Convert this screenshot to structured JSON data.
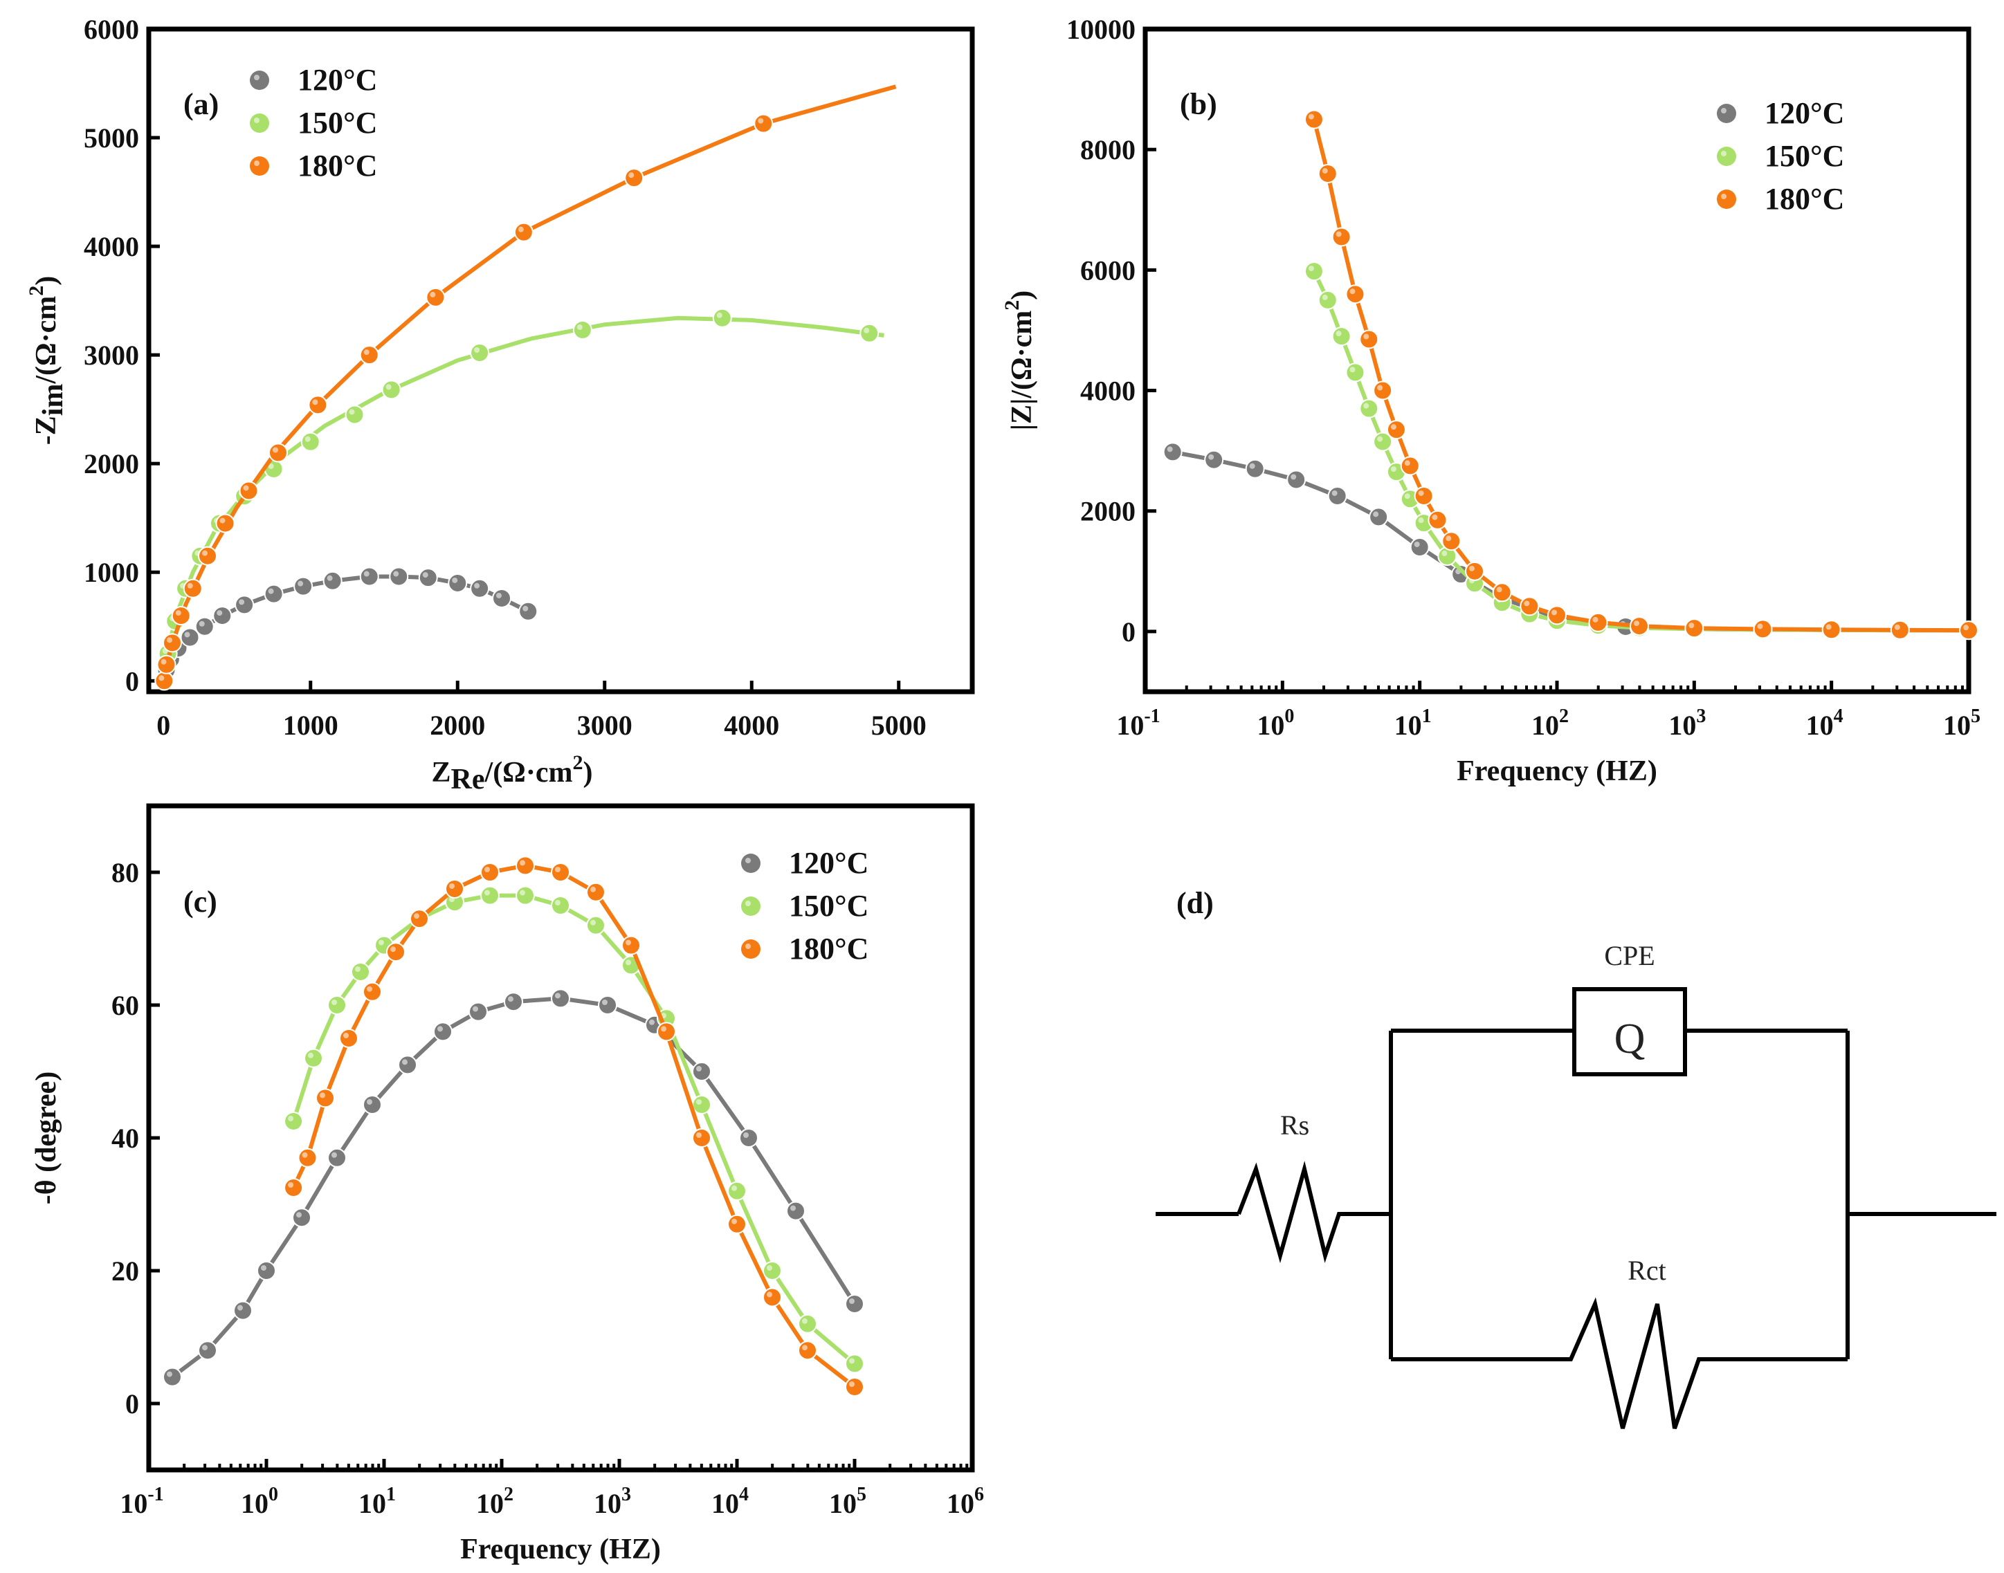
{
  "colors": {
    "c120": "#7a7a7a",
    "c150": "#a8e06a",
    "c180": "#f57a12",
    "axis": "#000000"
  },
  "chart_data": [
    {
      "panel": "a",
      "type": "scatter",
      "label": "(a)",
      "xlabel_main": "Z",
      "xlabel_sub": "Re",
      "xlabel_unit": "/(Ω·cm",
      "xlabel_sup": "2",
      "xlabel_close": ")",
      "ylabel_main": "-Z",
      "ylabel_sub": "im",
      "ylabel_unit": "/(Ω·cm",
      "ylabel_sup": "2",
      "ylabel_close": ")",
      "xlim": [
        -100,
        5500
      ],
      "ylim": [
        -100,
        6000
      ],
      "xticks": [
        0,
        1000,
        2000,
        3000,
        4000,
        5000
      ],
      "xtick_labels": [
        "0",
        "1000",
        "2000",
        "3000",
        "4000",
        "5000"
      ],
      "yticks": [
        0,
        1000,
        2000,
        3000,
        4000,
        5000,
        6000
      ],
      "ytick_labels": [
        "0",
        "1000",
        "2000",
        "3000",
        "4000",
        "5000",
        "6000"
      ],
      "series": [
        {
          "name": "120°C",
          "color_key": "c120",
          "x": [
            5,
            20,
            50,
            100,
            180,
            280,
            400,
            550,
            750,
            950,
            1150,
            1400,
            1600,
            1800,
            2000,
            2150,
            2300,
            2480
          ],
          "y": [
            0,
            100,
            200,
            300,
            400,
            500,
            600,
            700,
            800,
            870,
            920,
            960,
            960,
            950,
            900,
            850,
            760,
            640
          ]
        },
        {
          "name": "150°C",
          "color_key": "c150",
          "x": [
            5,
            30,
            80,
            150,
            250,
            380,
            550,
            750,
            1000,
            1300,
            1550,
            2150,
            2850,
            3800,
            4800
          ],
          "y": [
            0,
            250,
            550,
            850,
            1150,
            1450,
            1700,
            1950,
            2200,
            2450,
            2680,
            3020,
            3230,
            3340,
            3200
          ],
          "fit_x": [
            0,
            30,
            100,
            200,
            350,
            550,
            800,
            1100,
            1500,
            2000,
            2500,
            3000,
            3500,
            4000,
            4500,
            4900
          ],
          "fit_y": [
            0,
            300,
            650,
            1000,
            1380,
            1720,
            2050,
            2350,
            2650,
            2950,
            3150,
            3280,
            3340,
            3320,
            3250,
            3180
          ]
        },
        {
          "name": "180°C",
          "color_key": "c180",
          "x": [
            5,
            20,
            60,
            120,
            200,
            300,
            420,
            580,
            780,
            1050,
            1400,
            1850,
            2450,
            3200,
            4080
          ],
          "y": [
            0,
            150,
            350,
            600,
            850,
            1150,
            1450,
            1750,
            2100,
            2540,
            3000,
            3530,
            4130,
            4630,
            5130
          ],
          "fit_x": [
            0,
            50,
            150,
            300,
            500,
            750,
            1050,
            1400,
            1850,
            2450,
            3200,
            4080,
            4980
          ],
          "fit_y": [
            0,
            300,
            700,
            1130,
            1600,
            2080,
            2540,
            3000,
            3530,
            4130,
            4630,
            5130,
            5470
          ]
        }
      ]
    },
    {
      "panel": "b",
      "type": "scatter",
      "label": "(b)",
      "xlabel": "Frequency (HZ)",
      "ylabel_main": "|Z|/(Ω·cm",
      "ylabel_sup": "2",
      "ylabel_close": ")",
      "xscale": "log",
      "xlim_log10": [
        -1,
        5
      ],
      "ylim": [
        -1000,
        10000
      ],
      "xtick_exponents": [
        "-1",
        "0",
        "1",
        "2",
        "3",
        "4",
        "5"
      ],
      "xtick_base": "10",
      "yticks": [
        0,
        2000,
        4000,
        6000,
        8000,
        10000
      ],
      "ytick_labels": [
        "0",
        "2000",
        "4000",
        "6000",
        "8000",
        "10000"
      ],
      "series": [
        {
          "name": "120°C",
          "color_key": "c120",
          "log_f": [
            -0.8,
            -0.5,
            -0.2,
            0.1,
            0.4,
            0.7,
            1.0,
            1.3,
            1.6,
            2.0,
            2.5,
            3.0,
            3.5,
            4.0,
            4.5,
            5.0
          ],
          "y": [
            2980,
            2850,
            2700,
            2520,
            2250,
            1900,
            1400,
            950,
            550,
            230,
            80,
            40,
            30,
            25,
            20,
            20
          ]
        },
        {
          "name": "150°C",
          "color_key": "c150",
          "log_f": [
            0.23,
            0.33,
            0.43,
            0.53,
            0.63,
            0.73,
            0.83,
            0.93,
            1.03,
            1.2,
            1.4,
            1.6,
            1.8,
            2.0,
            2.3,
            2.6,
            3.0,
            3.5,
            4.0,
            4.5,
            5.0
          ],
          "y": [
            5980,
            5500,
            4900,
            4300,
            3700,
            3150,
            2650,
            2200,
            1800,
            1250,
            800,
            480,
            290,
            180,
            100,
            60,
            40,
            30,
            25,
            20,
            20
          ]
        },
        {
          "name": "180°C",
          "color_key": "c180",
          "log_f": [
            0.23,
            0.33,
            0.43,
            0.53,
            0.63,
            0.73,
            0.83,
            0.93,
            1.03,
            1.13,
            1.23,
            1.4,
            1.6,
            1.8,
            2.0,
            2.3,
            2.6,
            3.0,
            3.5,
            4.0,
            4.5,
            5.0
          ],
          "y": [
            8500,
            7600,
            6550,
            5600,
            4850,
            4000,
            3350,
            2750,
            2250,
            1850,
            1500,
            1000,
            650,
            420,
            270,
            150,
            90,
            55,
            40,
            30,
            25,
            20
          ]
        }
      ]
    },
    {
      "panel": "c",
      "type": "scatter",
      "label": "(c)",
      "xlabel": "Frequency (HZ)",
      "ylabel": "-θ (degree)",
      "xscale": "log",
      "xlim_log10": [
        -1,
        6
      ],
      "ylim": [
        -10,
        90
      ],
      "xtick_exponents": [
        "-1",
        "0",
        "1",
        "2",
        "3",
        "4",
        "5",
        "6"
      ],
      "xtick_base": "10",
      "yticks": [
        0,
        20,
        40,
        60,
        80
      ],
      "ytick_labels": [
        "0",
        "20",
        "40",
        "60",
        "80"
      ],
      "series": [
        {
          "name": "120°C",
          "color_key": "c120",
          "log_f": [
            -0.8,
            -0.5,
            -0.2,
            0.0,
            0.3,
            0.6,
            0.9,
            1.2,
            1.5,
            1.8,
            2.1,
            2.5,
            2.9,
            3.3,
            3.7,
            4.1,
            4.5,
            5.0
          ],
          "y": [
            4,
            8,
            14,
            20,
            28,
            37,
            45,
            51,
            56,
            59,
            60.5,
            61,
            60,
            57,
            50,
            40,
            29,
            15
          ]
        },
        {
          "name": "150°C",
          "color_key": "c150",
          "log_f": [
            0.23,
            0.4,
            0.6,
            0.8,
            1.0,
            1.3,
            1.6,
            1.9,
            2.2,
            2.5,
            2.8,
            3.1,
            3.4,
            3.7,
            4.0,
            4.3,
            4.6,
            5.0
          ],
          "y": [
            42.5,
            52,
            60,
            65,
            69,
            73,
            75.5,
            76.5,
            76.5,
            75,
            72,
            66,
            58,
            45,
            32,
            20,
            12,
            6
          ]
        },
        {
          "name": "180°C",
          "color_key": "c180",
          "log_f": [
            0.23,
            0.35,
            0.5,
            0.7,
            0.9,
            1.1,
            1.3,
            1.6,
            1.9,
            2.2,
            2.5,
            2.8,
            3.1,
            3.4,
            3.7,
            4.0,
            4.3,
            4.6,
            5.0
          ],
          "y": [
            32.5,
            37,
            46,
            55,
            62,
            68,
            73,
            77.5,
            80,
            81,
            80,
            77,
            69,
            56,
            40,
            27,
            16,
            8,
            2.5
          ]
        }
      ]
    }
  ],
  "legend": [
    {
      "name": "120°C",
      "color_key": "c120"
    },
    {
      "name": "150°C",
      "color_key": "c150"
    },
    {
      "name": "180°C",
      "color_key": "c180"
    }
  ],
  "circuit": {
    "label": "(d)",
    "cpe_label": "CPE",
    "q_label": "Q",
    "rs_label": "Rs",
    "rct_label": "Rct"
  }
}
